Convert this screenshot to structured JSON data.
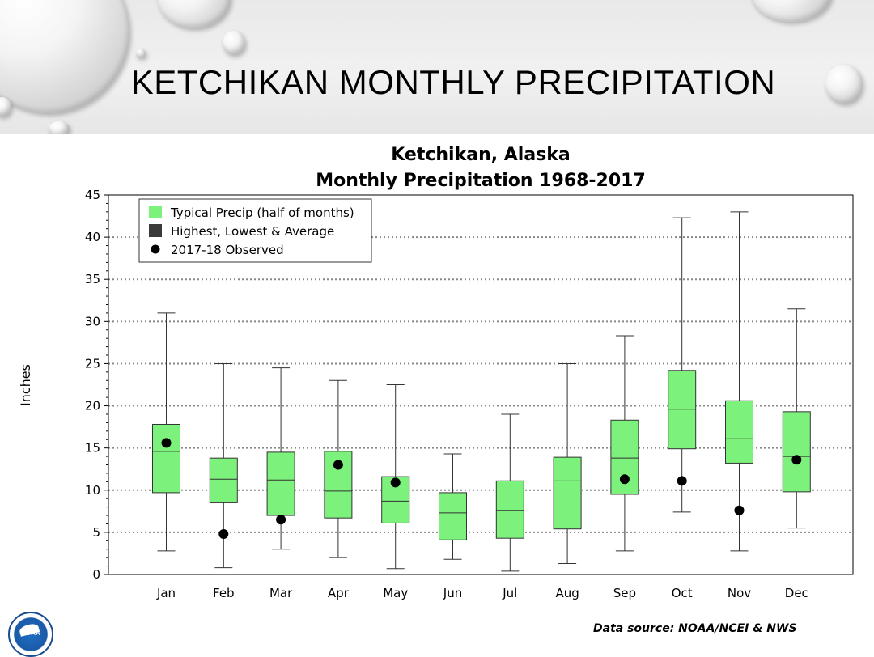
{
  "slide": {
    "title": "KETCHIKAN MONTHLY PRECIPITATION",
    "source": "Data source: NOAA/NCEI & NWS",
    "logo_text": "NOAA"
  },
  "chart_data": {
    "type": "box",
    "title_line1": "Ketchikan, Alaska",
    "title_line2": "Monthly Precipitation 1968-2017",
    "ylabel": "Inches",
    "ylim": [
      0,
      45
    ],
    "yticks": [
      0,
      5,
      10,
      15,
      20,
      25,
      30,
      35,
      40,
      45
    ],
    "grid": "horizontal dotted",
    "legend_position": "top-left",
    "legend": [
      {
        "label": "Typical Precip (half of months)",
        "symbol": "green-square"
      },
      {
        "label": "Highest, Lowest & Average",
        "symbol": "dark-square"
      },
      {
        "label": "2017-18 Observed",
        "symbol": "black-dot"
      }
    ],
    "colors": {
      "box": "#7cf27c",
      "box_edge": "#333333",
      "observed": "#000000",
      "grid": "#888888"
    },
    "categories": [
      "Jan",
      "Feb",
      "Mar",
      "Apr",
      "May",
      "Jun",
      "Jul",
      "Aug",
      "Sep",
      "Oct",
      "Nov",
      "Dec"
    ],
    "series": [
      {
        "name": "Highest",
        "values": [
          31.0,
          25.0,
          24.5,
          23.0,
          22.5,
          14.3,
          19.0,
          25.0,
          28.3,
          42.3,
          43.0,
          31.5
        ]
      },
      {
        "name": "Typical upper",
        "values": [
          17.8,
          13.8,
          14.5,
          14.6,
          11.6,
          9.7,
          11.1,
          13.9,
          18.3,
          24.2,
          20.6,
          19.3
        ]
      },
      {
        "name": "Average",
        "values": [
          14.6,
          11.3,
          11.2,
          9.9,
          8.7,
          7.3,
          7.6,
          11.1,
          13.8,
          19.6,
          16.1,
          14.0
        ]
      },
      {
        "name": "Typical lower",
        "values": [
          9.7,
          8.5,
          7.0,
          6.7,
          6.1,
          4.1,
          4.3,
          5.4,
          9.5,
          14.9,
          13.2,
          9.8
        ]
      },
      {
        "name": "Lowest",
        "values": [
          2.8,
          0.8,
          3.0,
          2.0,
          0.7,
          1.8,
          0.4,
          1.3,
          2.8,
          7.4,
          2.8,
          5.5
        ]
      },
      {
        "name": "2017-18 Observed",
        "values": [
          15.6,
          4.8,
          6.5,
          13.0,
          10.9,
          null,
          null,
          null,
          11.3,
          11.1,
          7.6,
          13.6
        ]
      }
    ]
  }
}
